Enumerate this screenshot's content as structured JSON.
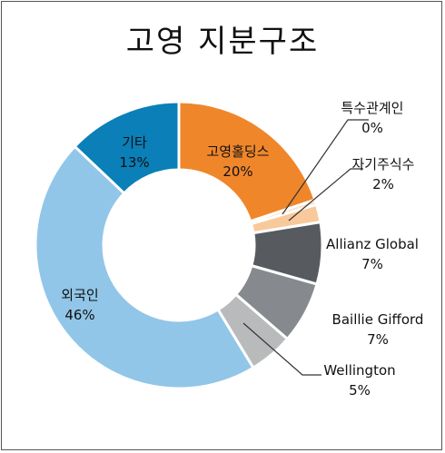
{
  "chart_data": {
    "type": "pie",
    "title": "고영 지분구조",
    "categories": [
      "고영홀딩스",
      "특수관계인",
      "자기주식수",
      "Allianz Global",
      "Baillie Gifford",
      "Wellington",
      "외국인",
      "기타"
    ],
    "values": [
      20,
      0,
      2,
      7,
      7,
      5,
      46,
      13
    ],
    "value_labels": [
      "20%",
      "0%",
      "2%",
      "7%",
      "7%",
      "5%",
      "46%",
      "13%"
    ],
    "colors": [
      "#f0862a",
      "#fbe2c8",
      "#f8c99a",
      "#575b60",
      "#86898d",
      "#b9babc",
      "#91c6e8",
      "#0a7fb8"
    ],
    "legend": "none",
    "style": "donut"
  }
}
